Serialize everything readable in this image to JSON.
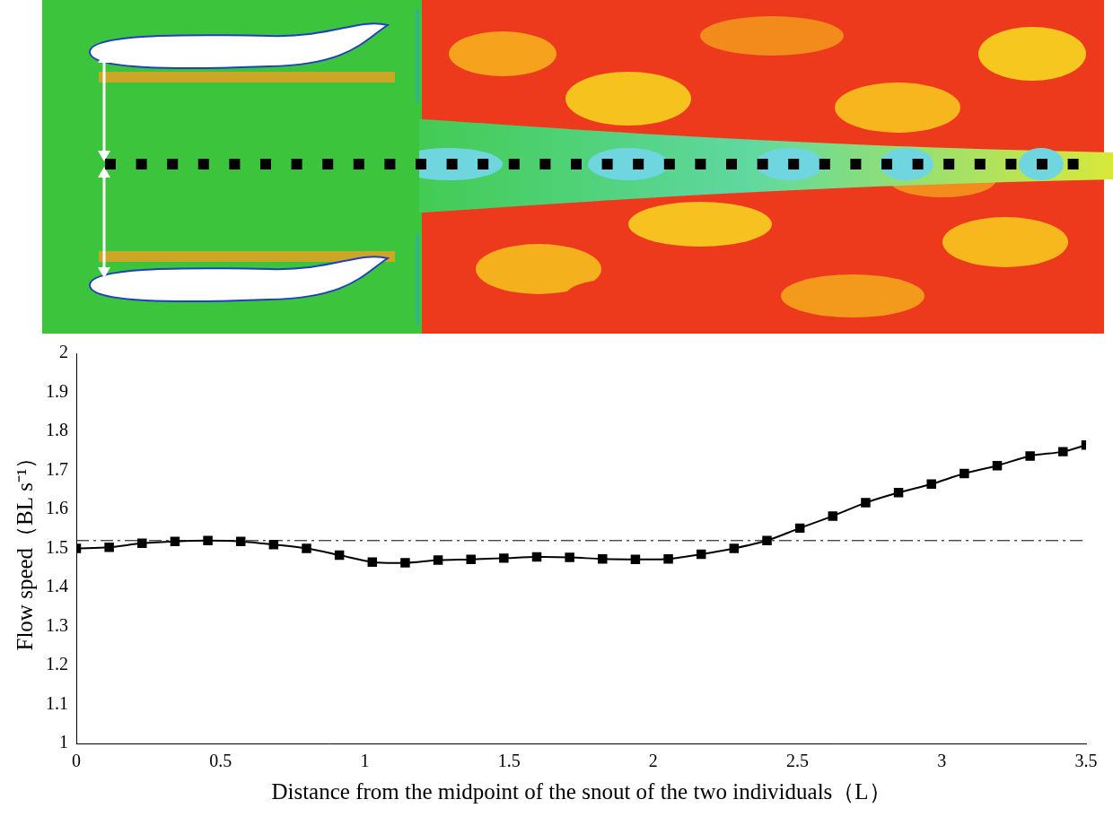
{
  "chart_data": {
    "type": "line",
    "x_label": "Distance from the midpoint of the snout of the two individuals（L）",
    "y_label": "Flow speed（BL s⁻¹）",
    "x": [
      0,
      0.114,
      0.228,
      0.342,
      0.456,
      0.57,
      0.684,
      0.798,
      0.912,
      1.026,
      1.14,
      1.254,
      1.368,
      1.482,
      1.596,
      1.71,
      1.824,
      1.938,
      2.052,
      2.166,
      2.28,
      2.394,
      2.508,
      2.622,
      2.736,
      2.85,
      2.964,
      3.078,
      3.192,
      3.306,
      3.42,
      3.5
    ],
    "values": [
      1.5,
      1.503,
      1.513,
      1.518,
      1.52,
      1.518,
      1.51,
      1.5,
      1.483,
      1.465,
      1.463,
      1.47,
      1.472,
      1.475,
      1.478,
      1.477,
      1.473,
      1.472,
      1.473,
      1.485,
      1.5,
      1.52,
      1.552,
      1.583,
      1.617,
      1.643,
      1.665,
      1.692,
      1.712,
      1.737,
      1.748,
      1.765
    ],
    "reference": 1.52,
    "color": "#000000",
    "marker": "square",
    "line_style": "solid",
    "xlim": [
      0,
      3.5
    ],
    "xticks": [
      0,
      0.5,
      1,
      1.5,
      2,
      2.5,
      3,
      3.5
    ],
    "ylim": [
      1,
      2
    ],
    "yticks": [
      1,
      1.1,
      1.2,
      1.3,
      1.4,
      1.5,
      1.6,
      1.7,
      1.8,
      1.9,
      2
    ],
    "grid": false
  }
}
